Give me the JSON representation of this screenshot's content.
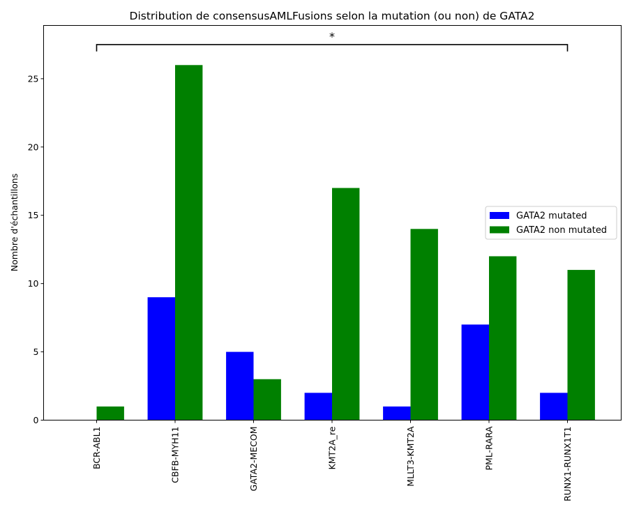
{
  "chart_data": {
    "type": "bar",
    "title": "Distribution de consensusAMLFusions selon la mutation (ou non) de GATA2",
    "xlabel": "",
    "ylabel": "Nombre d'échantillons",
    "categories": [
      "BCR-ABL1",
      "CBFB-MYH11",
      "GATA2-MECOM",
      "KMT2A_re",
      "MLLT3-KMT2A",
      "PML-RARA",
      "RUNX1-RUNX1T1"
    ],
    "series": [
      {
        "name": "GATA2 mutated",
        "color": "#0000ff",
        "values": [
          0,
          9,
          5,
          2,
          1,
          7,
          2
        ]
      },
      {
        "name": "GATA2 non mutated",
        "color": "#008000",
        "values": [
          1,
          26,
          3,
          17,
          14,
          12,
          11
        ]
      }
    ],
    "ylim": [
      0,
      28.9
    ],
    "yticks": [
      0,
      5,
      10,
      15,
      20,
      25
    ],
    "grid": false,
    "legend": "center-right",
    "annotation": {
      "text": "*",
      "bracket_from": "BCR-ABL1",
      "bracket_to": "RUNX1-RUNX1T1",
      "y": 27.5
    }
  }
}
